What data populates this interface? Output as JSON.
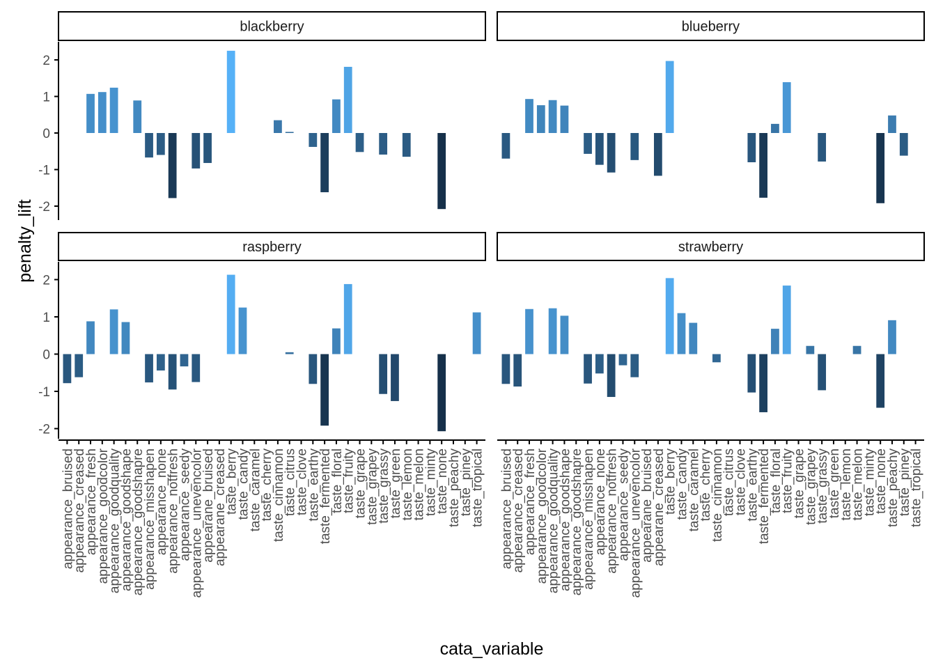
{
  "chart_data": {
    "type": "bar",
    "xlabel": "cata_variable",
    "ylabel": "penalty_lift",
    "ylim": [
      -2.3,
      2.4
    ],
    "yticks": [
      -2,
      -1,
      0,
      1,
      2
    ],
    "ytick_labels": [
      "-2",
      "-1",
      "0",
      "1",
      "2"
    ],
    "categories": [
      "appearance_bruised",
      "appearance_creased",
      "appearance_fresh",
      "appearance_goodcolor",
      "appearance_goodquality",
      "appearance_goodshape",
      "appearance_goodshapre",
      "appearance_misshapen",
      "appearance_none",
      "appearance_notfresh",
      "appearance_seedy",
      "appearance_unevencolor",
      "appearane_bruised",
      "appearane_creased",
      "taste_berry",
      "taste_candy",
      "taste_caramel",
      "taste_cherry",
      "taste_cinnamon",
      "taste_citrus",
      "taste_clove",
      "taste_earthy",
      "taste_fermented",
      "taste_floral",
      "taste_fruity",
      "taste_grape",
      "taste_grapey",
      "taste_grassy",
      "taste_green",
      "taste_lemon",
      "taste_melon",
      "taste_minty",
      "taste_none",
      "taste_peachy",
      "taste_piney",
      "taste_tropical"
    ],
    "color_scale": {
      "low": "#132B43",
      "high": "#56B1F7"
    },
    "facets": [
      {
        "name": "blackberry",
        "values": [
          null,
          null,
          1.07,
          1.12,
          1.24,
          null,
          0.89,
          -0.67,
          -0.6,
          -1.78,
          null,
          -0.97,
          -0.82,
          null,
          2.25,
          null,
          null,
          null,
          0.35,
          0.03,
          null,
          -0.38,
          -1.62,
          0.92,
          1.81,
          -0.52,
          null,
          -0.59,
          null,
          -0.65,
          null,
          null,
          -2.08,
          null,
          null,
          null
        ]
      },
      {
        "name": "blueberry",
        "values": [
          -0.7,
          null,
          0.93,
          0.76,
          0.9,
          0.75,
          null,
          -0.57,
          -0.87,
          -1.08,
          null,
          -0.74,
          null,
          -1.17,
          1.97,
          null,
          null,
          null,
          null,
          null,
          null,
          -0.8,
          -1.77,
          0.25,
          1.39,
          null,
          null,
          -0.78,
          null,
          null,
          null,
          null,
          -1.92,
          0.48,
          -0.62,
          null
        ]
      },
      {
        "name": "raspberry",
        "values": [
          -0.78,
          -0.62,
          0.88,
          null,
          1.2,
          0.86,
          null,
          -0.76,
          -0.44,
          -0.95,
          -0.33,
          -0.75,
          null,
          null,
          2.13,
          1.25,
          null,
          null,
          null,
          0.05,
          null,
          -0.8,
          -1.92,
          0.69,
          1.88,
          null,
          null,
          -1.07,
          -1.26,
          null,
          null,
          null,
          -2.07,
          null,
          null,
          1.12
        ]
      },
      {
        "name": "strawberry",
        "values": [
          -0.8,
          -0.87,
          1.21,
          null,
          1.23,
          1.03,
          null,
          -0.79,
          -0.52,
          -1.15,
          -0.3,
          -0.62,
          null,
          null,
          2.04,
          1.1,
          0.84,
          null,
          -0.22,
          null,
          null,
          -1.03,
          -1.56,
          0.68,
          1.84,
          null,
          0.22,
          -0.97,
          null,
          null,
          0.22,
          null,
          -1.44,
          0.91,
          null,
          null
        ]
      }
    ]
  }
}
